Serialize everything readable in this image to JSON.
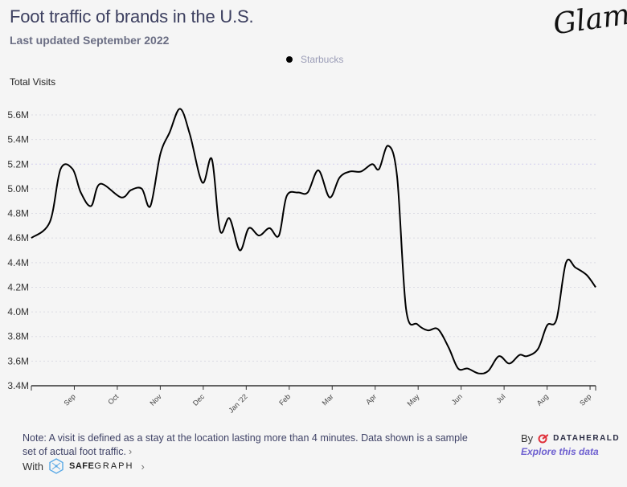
{
  "header": {
    "title": "Foot traffic of brands in the U.S.",
    "subtitle": "Last updated September 2022",
    "logo_text": "Glam"
  },
  "legend": {
    "items": [
      {
        "label": "Starbucks",
        "color": "#000000"
      }
    ]
  },
  "chart_data": {
    "type": "line",
    "title": "Foot traffic of brands in the U.S.",
    "subtitle": "Last updated September 2022",
    "xlabel": "",
    "ylabel": "Total Visits",
    "ylim": [
      3.4,
      5.7
    ],
    "y_unit": "M",
    "yticks": [
      3.4,
      3.6,
      3.8,
      4.0,
      4.2,
      4.4,
      4.6,
      4.8,
      5.0,
      5.2,
      5.4,
      5.6
    ],
    "ytick_labels": [
      "3.4M",
      "3.6M",
      "3.8M",
      "4.0M",
      "4.2M",
      "4.4M",
      "4.6M",
      "4.8M",
      "5.0M",
      "5.2M",
      "5.4M",
      "5.6M"
    ],
    "xlim": [
      -1.0,
      12.13
    ],
    "xticks": [
      0,
      1,
      2,
      3,
      4,
      5,
      6,
      7,
      8,
      9,
      10,
      11,
      12
    ],
    "xtick_labels": [
      "Sep",
      "Oct",
      "Nov",
      "Dec",
      "Jan '22",
      "Feb",
      "Mar",
      "Apr",
      "May",
      "Jun",
      "Jul",
      "Aug",
      "Sep"
    ],
    "grid": "horizontal-dotted",
    "legend_position": "top-center",
    "series": [
      {
        "name": "Starbucks",
        "color": "#000000",
        "x": [
          -1.0,
          -0.57,
          -0.32,
          -0.04,
          0.15,
          0.39,
          0.6,
          1.09,
          1.32,
          1.57,
          1.77,
          2.0,
          2.22,
          2.46,
          2.69,
          2.98,
          3.2,
          3.39,
          3.61,
          3.85,
          4.06,
          4.3,
          4.54,
          4.76,
          4.94,
          5.2,
          5.43,
          5.68,
          5.94,
          6.17,
          6.41,
          6.67,
          6.93,
          7.09,
          7.3,
          7.51,
          7.72,
          7.98,
          8.22,
          8.46,
          8.71,
          8.93,
          9.15,
          9.41,
          9.63,
          9.88,
          10.12,
          10.36,
          10.53,
          10.79,
          11.0,
          11.22,
          11.44,
          11.66,
          11.92,
          12.13
        ],
        "values": [
          4.6,
          4.73,
          5.16,
          5.16,
          4.97,
          4.86,
          5.04,
          4.93,
          4.99,
          5.0,
          4.86,
          5.28,
          5.46,
          5.65,
          5.44,
          5.05,
          5.24,
          4.66,
          4.76,
          4.5,
          4.68,
          4.62,
          4.68,
          4.62,
          4.94,
          4.97,
          4.97,
          5.15,
          4.93,
          5.09,
          5.14,
          5.14,
          5.2,
          5.16,
          5.35,
          5.1,
          4.02,
          3.9,
          3.85,
          3.86,
          3.71,
          3.54,
          3.54,
          3.5,
          3.52,
          3.64,
          3.58,
          3.65,
          3.64,
          3.7,
          3.89,
          3.94,
          4.4,
          4.36,
          4.3,
          4.2
        ]
      }
    ]
  },
  "footer": {
    "note": "Note: A visit is defined as a stay at the location lasting more than 4 minutes. Data shown is a sample set of actual foot traffic.",
    "note_arrow": "›",
    "with_label": "With",
    "safegraph_bold": "SAFE",
    "safegraph_rest": "GRAPH",
    "safegraph_arrow": "›",
    "by_label": "By",
    "dataherald_label": "DATAHERALD",
    "explore_label": "Explore this data"
  }
}
